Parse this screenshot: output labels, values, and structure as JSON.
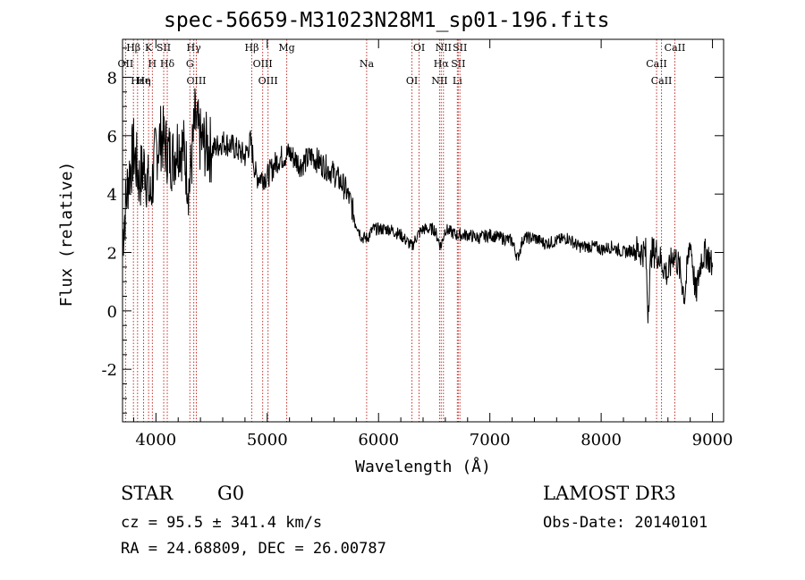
{
  "chart_data": {
    "type": "line",
    "title": "spec-56659-M31023N28M1_sp01-196.fits",
    "xlabel": "Wavelength (Å)",
    "ylabel": "Flux (relative)",
    "xlim": [
      3700,
      9100
    ],
    "ylim": [
      -3.8,
      9.3
    ],
    "xticks": [
      4000,
      5000,
      6000,
      7000,
      8000,
      9000
    ],
    "yticks": [
      -2,
      0,
      2,
      4,
      6,
      8
    ],
    "series": [
      {
        "x": [
          3700,
          3750,
          3800,
          3850,
          3900,
          3950,
          4000,
          4050,
          4100,
          4150,
          4200,
          4250,
          4300,
          4350,
          4400,
          4500,
          4600,
          4700,
          4800,
          4850,
          4900,
          5000,
          5100,
          5200,
          5300,
          5400,
          5500,
          5600,
          5700,
          5750,
          5800,
          5850,
          5900,
          5950,
          6000,
          6100,
          6200,
          6300,
          6350,
          6400,
          6500,
          6560,
          6600,
          6700,
          6800,
          6900,
          7000,
          7100,
          7200,
          7250,
          7300,
          7400,
          7500,
          7600,
          7700,
          7800,
          7900,
          7950,
          8000,
          8100,
          8200,
          8300,
          8400,
          8420,
          8450,
          8500,
          8600,
          8650,
          8700,
          8750,
          8800,
          8850,
          8900,
          8950,
          9000
        ],
        "y": [
          2.5,
          4.5,
          5.5,
          4.5,
          5.0,
          3.8,
          5.5,
          6.0,
          5.5,
          5.2,
          5.8,
          5.5,
          4.2,
          6.5,
          5.8,
          5.5,
          5.8,
          5.6,
          5.3,
          5.8,
          4.6,
          4.6,
          5.2,
          5.4,
          5.0,
          5.3,
          5.0,
          4.7,
          4.2,
          3.7,
          3.0,
          2.5,
          2.5,
          2.8,
          2.8,
          2.8,
          2.6,
          2.2,
          2.6,
          2.8,
          2.8,
          2.2,
          2.8,
          2.6,
          2.6,
          2.5,
          2.6,
          2.5,
          2.4,
          1.8,
          2.5,
          2.5,
          2.3,
          2.4,
          2.5,
          2.2,
          2.2,
          2.2,
          2.1,
          2.2,
          2.0,
          2.1,
          2.0,
          0.0,
          2.0,
          2.0,
          1.2,
          2.0,
          1.5,
          0.5,
          2.5,
          0.5,
          1.8,
          2.0,
          1.5
        ]
      }
    ],
    "lines": [
      {
        "label": "Hβ",
        "x": 3798
      },
      {
        "label": "OII",
        "x": 3727
      },
      {
        "label": "Hε",
        "x": 3835
      },
      {
        "label": "K",
        "x": 3934
      },
      {
        "label": "H",
        "x": 3968
      },
      {
        "label": "He",
        "x": 3889
      },
      {
        "label": "SII",
        "x": 4070
      },
      {
        "label": "Hδ",
        "x": 4102
      },
      {
        "label": "OIII",
        "x": 4363
      },
      {
        "label": "Hγ",
        "x": 4340
      },
      {
        "label": "G",
        "x": 4305
      },
      {
        "label": "Hη",
        "x": 3889
      },
      {
        "label": "Hβ",
        "x": 4861
      },
      {
        "label": "OIII",
        "x": 4959
      },
      {
        "label": "OIII",
        "x": 5007
      },
      {
        "label": "Mg",
        "x": 5175
      },
      {
        "label": "Na",
        "x": 5893
      },
      {
        "label": "OI",
        "x": 6300
      },
      {
        "label": "OI",
        "x": 6364
      },
      {
        "label": "Hα",
        "x": 6563
      },
      {
        "label": "NII",
        "x": 6548
      },
      {
        "label": "NII",
        "x": 6583
      },
      {
        "label": "SII",
        "x": 6716
      },
      {
        "label": "Li",
        "x": 6708
      },
      {
        "label": "SII",
        "x": 6731
      },
      {
        "label": "CaII",
        "x": 8498
      },
      {
        "label": "CaII",
        "x": 8542
      },
      {
        "label": "CaII",
        "x": 8662
      }
    ]
  },
  "info": {
    "class": "STAR",
    "subclass": "G0",
    "survey": "LAMOST DR3",
    "cz": "cz = 95.5 ± 341.4 km/s",
    "obs_date": "Obs-Date: 20140101",
    "coords": "RA =  24.68809, DEC =  26.00787"
  }
}
